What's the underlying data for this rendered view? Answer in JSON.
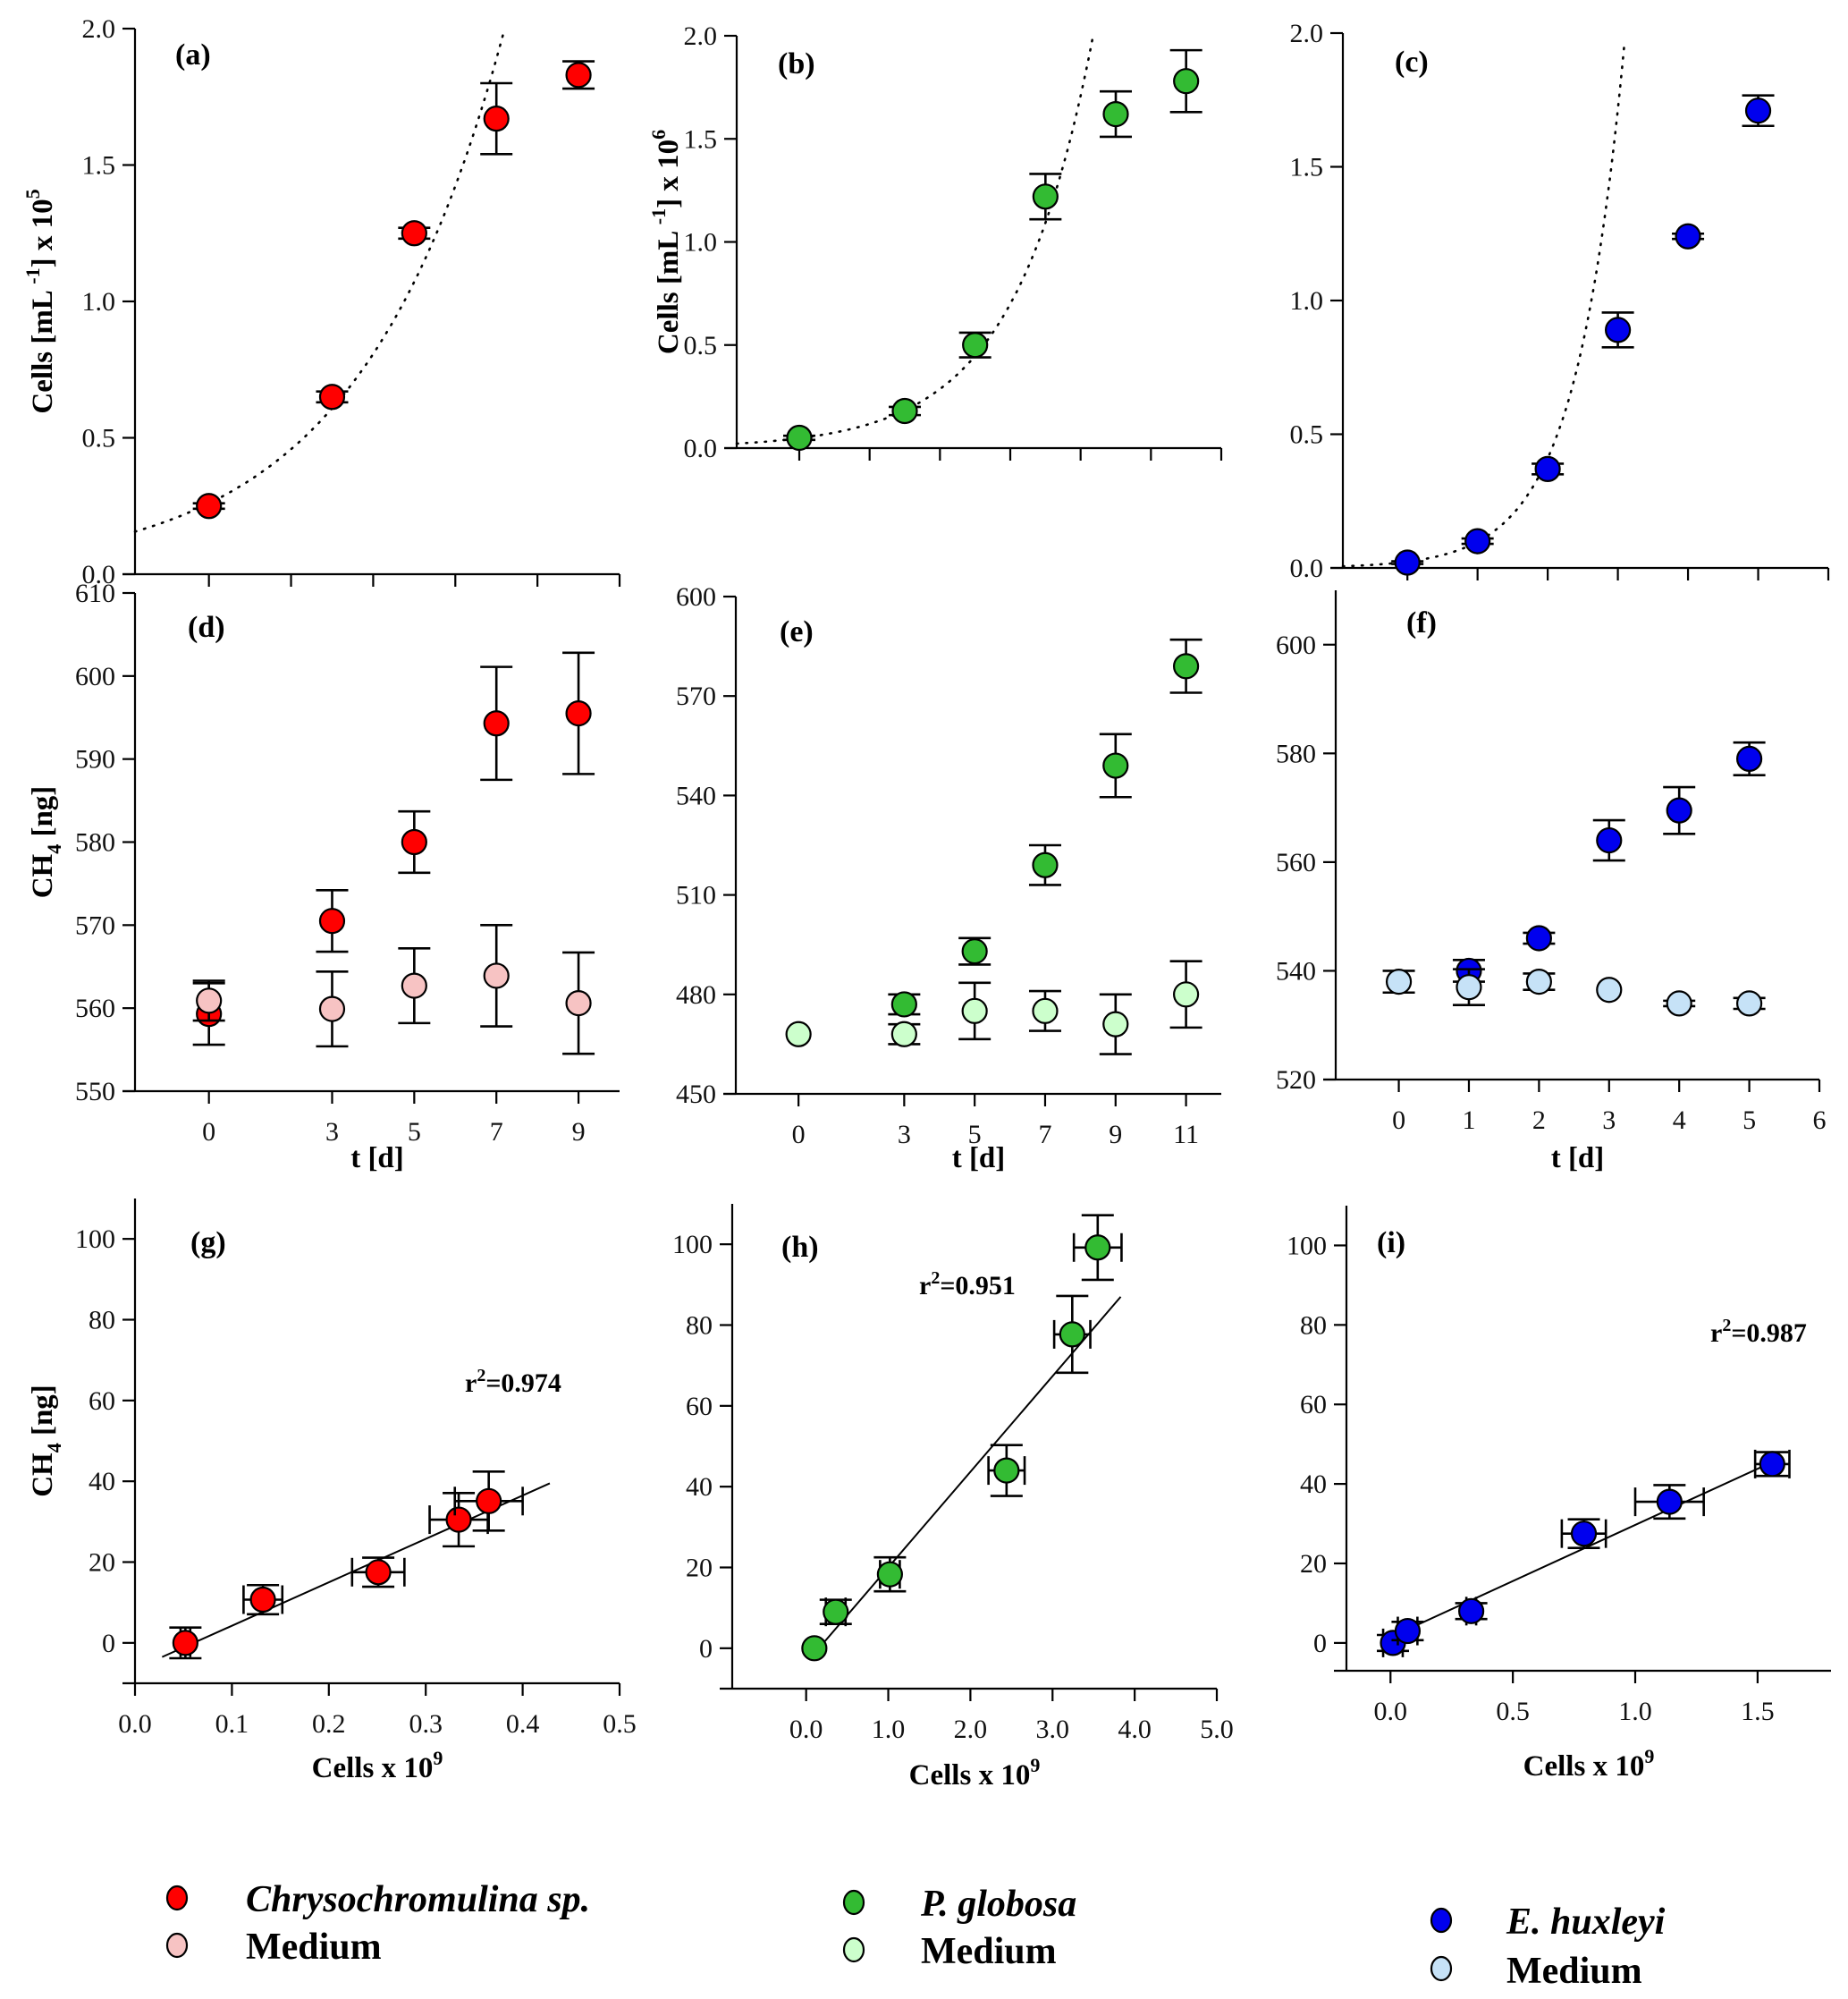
{
  "colors": {
    "chrysochromulina": "#ff0000",
    "chrysochromulina_medium": "#f7c3c3",
    "pglobosa": "#33bb33",
    "pglobosa_medium": "#ccffcc",
    "ehuxleyi": "#0000ee",
    "ehuxleyi_medium": "#c6e2f7"
  },
  "legend": [
    {
      "series": "chrysochromulina",
      "label": "Chrysochromulina sp.",
      "italic": true
    },
    {
      "series": "chrysochromulina_medium",
      "label": "Medium",
      "italic": false
    },
    {
      "series": "pglobosa",
      "label": "P. globosa",
      "italic": true
    },
    {
      "series": "pglobosa_medium",
      "label": "Medium",
      "italic": false
    },
    {
      "series": "ehuxleyi",
      "label": "E. huxleyi",
      "italic": true
    },
    {
      "series": "ehuxleyi_medium",
      "label": "Medium",
      "italic": false
    }
  ],
  "chart_data": [
    {
      "id": "a",
      "type": "scatter",
      "panel_label": "(a)",
      "ylabel_main": "Cells [mL ",
      "ylabel_sup1": "-1",
      "ylabel_tail": "] x 10",
      "ylabel_sup2": "5",
      "xlabel": "",
      "xlim": [
        -1.8,
        10
      ],
      "ylim": [
        0,
        2.0
      ],
      "xticks": [
        0,
        2,
        4,
        6,
        8,
        10
      ],
      "xtick_labels": [],
      "yticks": [
        0,
        0.5,
        1.0,
        1.5,
        2.0
      ],
      "ytick_labels": [
        "0.0",
        "0.5",
        "1.0",
        "1.5",
        "2.0"
      ],
      "fit": {
        "kind": "exponential",
        "a": 0.26,
        "b": 0.2833
      },
      "series": [
        {
          "name": "Chrysochromulina sp.",
          "color_key": "chrysochromulina",
          "x": [
            0,
            3,
            5,
            7,
            9
          ],
          "y": [
            0.25,
            0.65,
            1.25,
            1.67,
            1.83
          ],
          "yerr": [
            0.01,
            0.02,
            0.02,
            0.13,
            0.05
          ]
        }
      ]
    },
    {
      "id": "b",
      "type": "scatter",
      "panel_label": "(b)",
      "ylabel_main": "Cells [mL ",
      "ylabel_sup1": "-1",
      "ylabel_tail": "] x 10",
      "ylabel_sup2": "6",
      "xlabel": "",
      "xlim": [
        -1.78,
        12
      ],
      "ylim": [
        0,
        2.0
      ],
      "xticks": [
        0,
        2,
        4,
        6,
        8,
        10,
        12
      ],
      "xtick_labels": [],
      "yticks": [
        0,
        0.5,
        1.0,
        1.5,
        2.0
      ],
      "ytick_labels": [
        "0.0",
        "0.5",
        "1.0",
        "1.5",
        "2.0"
      ],
      "fit": {
        "kind": "exponential",
        "a": 0.048,
        "b": 0.4465
      },
      "series": [
        {
          "name": "P. globosa",
          "color_key": "pglobosa",
          "x": [
            0,
            3,
            5,
            7,
            9,
            11
          ],
          "y": [
            0.05,
            0.18,
            0.5,
            1.22,
            1.62,
            1.78
          ],
          "yerr": [
            0.01,
            0.02,
            0.06,
            0.11,
            0.11,
            0.15
          ]
        }
      ]
    },
    {
      "id": "c",
      "type": "scatter",
      "panel_label": "(c)",
      "ylabel_main": "",
      "ylabel_sup1": "",
      "ylabel_tail": "",
      "ylabel_sup2": "",
      "xlabel": "",
      "xlim": [
        -0.92,
        6
      ],
      "ylim": [
        0,
        2.0
      ],
      "xticks": [
        0,
        1,
        2,
        3,
        4,
        5,
        6
      ],
      "xtick_labels": [],
      "yticks": [
        0,
        0.5,
        1.0,
        1.5,
        2.0
      ],
      "ytick_labels": [
        "0.0",
        "0.5",
        "1.0",
        "1.5",
        "2.0"
      ],
      "fit": {
        "kind": "exponential",
        "a": 0.0235,
        "b": 1.43
      },
      "series": [
        {
          "name": "E. huxleyi",
          "color_key": "ehuxleyi",
          "x": [
            0,
            1,
            2,
            3,
            4,
            5
          ],
          "y": [
            0.02,
            0.1,
            0.37,
            0.89,
            1.24,
            1.71
          ],
          "yerr": [
            0.005,
            0.01,
            0.02,
            0.065,
            0.01,
            0.057
          ]
        }
      ]
    },
    {
      "id": "d",
      "type": "scatter",
      "panel_label": "(d)",
      "ylabel_main": "CH",
      "ylabel_sub": "4",
      "ylabel_tail": " [ng]",
      "xlabel": "t [d]",
      "xlim": [
        -1.8,
        10
      ],
      "ylim": [
        550,
        610
      ],
      "xticks": [
        0,
        3,
        5,
        7,
        9
      ],
      "xtick_labels": [
        "0",
        "3",
        "5",
        "7",
        "9"
      ],
      "yticks": [
        550,
        560,
        570,
        580,
        590,
        600,
        610
      ],
      "ytick_labels": [
        "550",
        "560",
        "570",
        "580",
        "590",
        "600",
        "610"
      ],
      "series": [
        {
          "name": "Chrysochromulina sp.",
          "color_key": "chrysochromulina",
          "x": [
            0,
            3,
            5,
            7,
            9
          ],
          "y": [
            559.3,
            570.5,
            580.0,
            594.3,
            595.5
          ],
          "yerr": [
            3.7,
            3.7,
            3.7,
            6.8,
            7.3
          ]
        },
        {
          "name": "Medium",
          "color_key": "chrysochromulina_medium",
          "x": [
            0,
            3,
            5,
            7,
            9
          ],
          "y": [
            560.9,
            559.9,
            562.7,
            563.9,
            560.6
          ],
          "yerr": [
            2.4,
            4.5,
            4.5,
            6.1,
            6.1
          ]
        }
      ]
    },
    {
      "id": "e",
      "type": "scatter",
      "panel_label": "(e)",
      "ylabel_main": "",
      "ylabel_sub": "",
      "ylabel_tail": "",
      "xlabel": "t [d]",
      "xlim": [
        -1.78,
        12
      ],
      "ylim": [
        450,
        600
      ],
      "xticks": [
        0,
        3,
        5,
        7,
        9,
        11
      ],
      "xtick_labels": [
        "0",
        "3",
        "5",
        "7",
        "9",
        "11"
      ],
      "yticks": [
        450,
        480,
        510,
        540,
        570,
        600
      ],
      "ytick_labels": [
        "450",
        "480",
        "510",
        "540",
        "570",
        "600"
      ],
      "series": [
        {
          "name": "P. globosa",
          "color_key": "pglobosa",
          "x": [
            3,
            5,
            7,
            9,
            11
          ],
          "y": [
            477,
            493,
            519,
            549,
            579
          ],
          "yerr": [
            3,
            4,
            6,
            9.5,
            8
          ]
        },
        {
          "name": "Medium",
          "color_key": "pglobosa_medium",
          "x": [
            0,
            3,
            5,
            7,
            9,
            11
          ],
          "y": [
            468,
            468,
            475,
            475,
            471,
            480
          ],
          "yerr": [
            0,
            3,
            8.5,
            6,
            9,
            10
          ]
        }
      ]
    },
    {
      "id": "f",
      "type": "scatter",
      "panel_label": "(f)",
      "ylabel_main": "",
      "ylabel_sub": "",
      "ylabel_tail": "",
      "xlabel": "t [d]",
      "xlim": [
        -0.9,
        6
      ],
      "ylim": [
        520,
        610
      ],
      "xticks": [
        0,
        1,
        2,
        3,
        4,
        5,
        6
      ],
      "xtick_labels": [
        "0",
        "1",
        "2",
        "3",
        "4",
        "5",
        "6"
      ],
      "yticks": [
        520,
        540,
        560,
        580,
        600
      ],
      "ytick_labels": [
        "520",
        "540",
        "560",
        "580",
        "600"
      ],
      "series": [
        {
          "name": "E. huxleyi",
          "color_key": "ehuxleyi",
          "x": [
            1,
            2,
            3,
            4,
            5
          ],
          "y": [
            540,
            546,
            564,
            569.5,
            579
          ],
          "yerr": [
            2,
            1,
            3.7,
            4.3,
            3
          ]
        },
        {
          "name": "Medium",
          "color_key": "ehuxleyi_medium",
          "x": [
            0,
            1,
            2,
            3,
            4,
            5
          ],
          "y": [
            538,
            537,
            538,
            536.5,
            534,
            534
          ],
          "yerr": [
            2,
            3.3,
            1.5,
            0,
            0.5,
            1
          ]
        }
      ]
    },
    {
      "id": "g",
      "type": "scatter",
      "panel_label": "(g)",
      "ylabel_main": "CH",
      "ylabel_sub": "4",
      "ylabel_tail": " [ng]",
      "xlabel_main": "Cells x 10",
      "xlabel_sup": "9",
      "xlim": [
        0,
        0.5
      ],
      "ylim": [
        -10,
        110
      ],
      "xticks": [
        0,
        0.1,
        0.2,
        0.3,
        0.4,
        0.5
      ],
      "xtick_labels": [
        "0.0",
        "0.1",
        "0.2",
        "0.3",
        "0.4",
        "0.5"
      ],
      "yticks": [
        0,
        20,
        40,
        60,
        80,
        100
      ],
      "ytick_labels": [
        "0",
        "20",
        "40",
        "60",
        "80",
        "100"
      ],
      "r2": "0.974",
      "fit": {
        "kind": "linear",
        "x0": 0.028,
        "y0": -3.5,
        "x1": 0.428,
        "y1": 39.5
      },
      "series": [
        {
          "name": "Chrysochromulina sp.",
          "color_key": "chrysochromulina",
          "x": [
            0.052,
            0.132,
            0.251,
            0.334,
            0.365
          ],
          "y": [
            0,
            10.7,
            17.5,
            30.5,
            35.1
          ],
          "xerr": [
            0.005,
            0.02,
            0.027,
            0.03,
            0.035
          ],
          "yerr": [
            3.8,
            3.6,
            3.6,
            6.6,
            7.3
          ]
        }
      ]
    },
    {
      "id": "h",
      "type": "scatter",
      "panel_label": "(h)",
      "ylabel_main": "",
      "ylabel_sub": "",
      "ylabel_tail": "",
      "xlabel_main": "Cells x 10",
      "xlabel_sup": "9",
      "xlim": [
        -0.9,
        5.0
      ],
      "ylim": [
        -10,
        110
      ],
      "xticks": [
        0,
        1,
        2,
        3,
        4,
        5
      ],
      "xtick_labels": [
        "0.0",
        "1.0",
        "2.0",
        "3.0",
        "4.0",
        "5.0"
      ],
      "yticks": [
        0,
        20,
        40,
        60,
        80,
        100
      ],
      "ytick_labels": [
        "0",
        "20",
        "40",
        "60",
        "80",
        "100"
      ],
      "r2": "0.951",
      "fit": {
        "kind": "linear",
        "x0": 0.05,
        "y0": -2.5,
        "x1": 3.83,
        "y1": 87
      },
      "series": [
        {
          "name": "P. globosa",
          "color_key": "pglobosa",
          "x": [
            0.1,
            0.36,
            1.02,
            2.44,
            3.24,
            3.55
          ],
          "y": [
            0,
            9,
            18.3,
            44,
            77.7,
            99.2
          ],
          "xerr": [
            0,
            0.12,
            0.12,
            0.22,
            0.22,
            0.29
          ],
          "yerr": [
            0,
            3,
            4.2,
            6.3,
            9.5,
            8
          ]
        }
      ]
    },
    {
      "id": "i",
      "type": "scatter",
      "panel_label": "(i)",
      "ylabel_main": "",
      "ylabel_sub": "",
      "ylabel_tail": "",
      "xlabel_main": "Cells x 10",
      "xlabel_sup": "9",
      "xlim": [
        -0.18,
        1.8
      ],
      "ylim": [
        -7,
        110
      ],
      "xticks": [
        0,
        0.5,
        1.0,
        1.5
      ],
      "xtick_labels": [
        "0.0",
        "0.5",
        "1.0",
        "1.5"
      ],
      "yticks": [
        0,
        20,
        40,
        60,
        80,
        100
      ],
      "ytick_labels": [
        "0",
        "20",
        "40",
        "60",
        "80",
        "100"
      ],
      "r2": "0.987",
      "fit": {
        "kind": "linear",
        "x0": 0.02,
        "y0": 2,
        "x1": 1.56,
        "y1": 45.5
      },
      "series": [
        {
          "name": "E. huxleyi",
          "color_key": "ehuxleyi",
          "x": [
            0.01,
            0.07,
            0.33,
            0.79,
            1.14,
            1.56
          ],
          "y": [
            0,
            3,
            8,
            27.5,
            35.5,
            45
          ],
          "xerr": [
            0.04,
            0.04,
            0.02,
            0.09,
            0.14,
            0.07
          ],
          "yerr": [
            2,
            2.3,
            2,
            3.6,
            4.2,
            3
          ]
        }
      ]
    }
  ]
}
